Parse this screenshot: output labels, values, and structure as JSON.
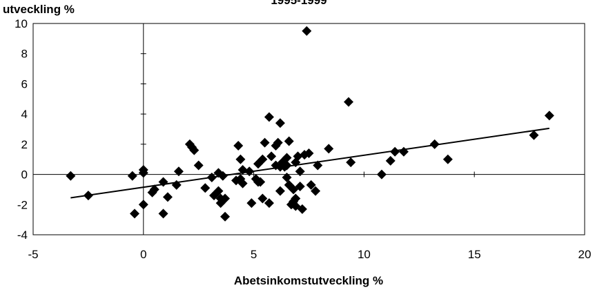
{
  "chart_data": {
    "type": "scatter",
    "title": "1995-1999",
    "xlabel": "Abetsinkomstutveckling %",
    "ylabel": "utveckling %",
    "xlim": [
      -5,
      20
    ],
    "ylim": [
      -4,
      10
    ],
    "xticks": [
      -5,
      0,
      5,
      10,
      15,
      20
    ],
    "yticks": [
      -4,
      -2,
      0,
      2,
      4,
      6,
      8,
      10
    ],
    "grid": false,
    "legend": "none",
    "marker_color": "#000000",
    "marker": "diamond",
    "points": [
      [
        -3.3,
        -0.1
      ],
      [
        -2.5,
        -1.4
      ],
      [
        -0.5,
        -0.1
      ],
      [
        -0.4,
        -2.6
      ],
      [
        0.0,
        -2.0
      ],
      [
        0.0,
        0.3
      ],
      [
        0.0,
        0.1
      ],
      [
        0.4,
        -1.2
      ],
      [
        0.5,
        -1.0
      ],
      [
        0.9,
        -0.5
      ],
      [
        0.9,
        -2.6
      ],
      [
        1.1,
        -1.5
      ],
      [
        1.5,
        -0.7
      ],
      [
        1.6,
        0.2
      ],
      [
        2.1,
        2.0
      ],
      [
        2.2,
        1.8
      ],
      [
        2.3,
        1.6
      ],
      [
        2.5,
        0.6
      ],
      [
        2.8,
        -0.9
      ],
      [
        3.1,
        -0.2
      ],
      [
        3.2,
        -1.4
      ],
      [
        3.4,
        0.1
      ],
      [
        3.4,
        -1.1
      ],
      [
        3.5,
        -1.6
      ],
      [
        3.5,
        -1.9
      ],
      [
        3.6,
        -0.1
      ],
      [
        3.7,
        -1.6
      ],
      [
        3.7,
        -2.8
      ],
      [
        4.2,
        -0.4
      ],
      [
        4.3,
        1.9
      ],
      [
        4.4,
        1.0
      ],
      [
        4.4,
        -0.3
      ],
      [
        4.5,
        -0.6
      ],
      [
        4.5,
        0.3
      ],
      [
        4.8,
        0.2
      ],
      [
        4.9,
        -1.9
      ],
      [
        5.1,
        -0.3
      ],
      [
        5.2,
        -0.5
      ],
      [
        5.2,
        0.7
      ],
      [
        5.3,
        -0.5
      ],
      [
        5.4,
        1.0
      ],
      [
        5.4,
        -1.6
      ],
      [
        5.5,
        2.1
      ],
      [
        5.7,
        3.8
      ],
      [
        5.7,
        -1.9
      ],
      [
        5.8,
        1.2
      ],
      [
        6.0,
        0.6
      ],
      [
        6.0,
        1.9
      ],
      [
        6.1,
        2.1
      ],
      [
        6.2,
        3.4
      ],
      [
        6.2,
        0.5
      ],
      [
        6.2,
        -1.1
      ],
      [
        6.3,
        0.8
      ],
      [
        6.4,
        0.5
      ],
      [
        6.5,
        1.1
      ],
      [
        6.5,
        0.6
      ],
      [
        6.5,
        -0.2
      ],
      [
        6.6,
        -0.7
      ],
      [
        6.6,
        2.2
      ],
      [
        6.7,
        -2.0
      ],
      [
        6.8,
        -1.8
      ],
      [
        6.8,
        -1.0
      ],
      [
        6.9,
        0.8
      ],
      [
        6.9,
        -2.1
      ],
      [
        6.9,
        -1.6
      ],
      [
        7.0,
        1.2
      ],
      [
        7.1,
        0.2
      ],
      [
        7.1,
        -0.8
      ],
      [
        7.2,
        -2.3
      ],
      [
        7.3,
        1.3
      ],
      [
        7.4,
        9.5
      ],
      [
        7.5,
        1.4
      ],
      [
        7.6,
        -0.7
      ],
      [
        7.8,
        -1.1
      ],
      [
        7.9,
        0.6
      ],
      [
        8.4,
        1.7
      ],
      [
        9.3,
        4.8
      ],
      [
        9.4,
        0.8
      ],
      [
        10.8,
        0.0
      ],
      [
        11.2,
        0.9
      ],
      [
        11.4,
        1.5
      ],
      [
        11.8,
        1.5
      ],
      [
        13.2,
        2.0
      ],
      [
        13.8,
        1.0
      ],
      [
        17.7,
        2.6
      ],
      [
        18.4,
        3.9
      ]
    ],
    "trendline": {
      "x": [
        -3.3,
        18.4
      ],
      "y": [
        -1.55,
        3.05
      ]
    }
  }
}
